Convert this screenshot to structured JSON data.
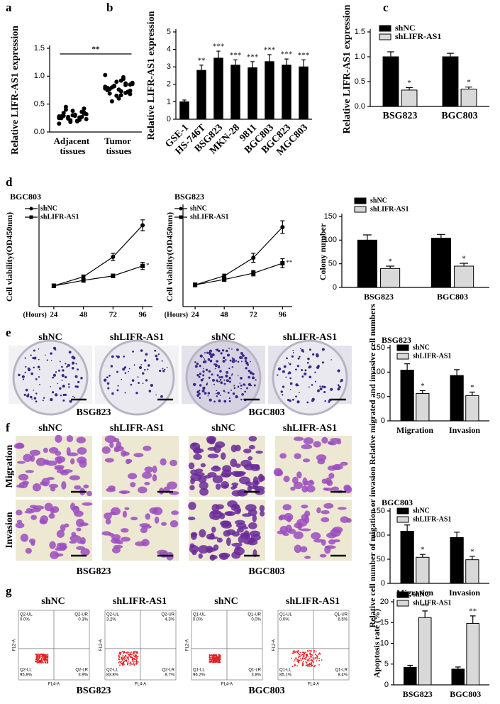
{
  "panel_labels": [
    "a",
    "b",
    "c",
    "d",
    "e",
    "f",
    "g"
  ],
  "chart_data": [
    {
      "type": "dot",
      "ylabel": "Relative LIFR-AS1 expression",
      "categories": [
        "Adjacent tissues",
        "Tumor tissues"
      ],
      "values": [
        [
          0.28,
          0.35,
          0.22,
          0.3,
          0.18,
          0.4,
          0.25,
          0.32,
          0.27,
          0.2,
          0.38,
          0.24,
          0.29,
          0.15,
          0.33,
          0.26,
          0.31,
          0.21,
          0.45,
          0.28,
          0.23,
          0.36,
          0.19,
          0.3,
          0.27,
          0.34,
          0.25,
          0.42,
          0.22,
          0.29
        ],
        [
          0.78,
          0.85,
          0.7,
          0.92,
          0.65,
          0.8,
          0.75,
          0.88,
          0.72,
          0.95,
          0.6,
          0.82,
          0.77,
          1.02,
          0.68,
          0.84,
          0.73,
          0.9,
          0.55,
          0.79,
          0.86,
          0.71,
          0.98,
          0.76,
          0.83,
          0.69,
          0.81,
          0.74,
          0.87,
          0.66
        ]
      ],
      "color": "#000000",
      "annotation": "**",
      "ylim": [
        0,
        1.5
      ],
      "yticks": [
        {
          "value": 0,
          "label": "0.0"
        },
        {
          "value": 0.5,
          "label": "0.5"
        },
        {
          "value": 1,
          "label": "1.0"
        },
        {
          "value": 1.5,
          "label": "1.5"
        }
      ]
    },
    {
      "type": "bar",
      "ylabel": "Relative LIFR-AS1 expression",
      "categories": [
        "GSE-1",
        "HS-746T",
        "BSG823",
        "MKN-28",
        "9811",
        "BGC803",
        "BGC823",
        "MGC803"
      ],
      "values": [
        1,
        2.8,
        3.5,
        3.1,
        2.95,
        3.3,
        3.1,
        3.0
      ],
      "errors": [
        0.1,
        0.3,
        0.4,
        0.3,
        0.35,
        0.4,
        0.35,
        0.4
      ],
      "annotations": [
        null,
        "**",
        "***",
        "***",
        "***",
        "***",
        "***",
        "***"
      ],
      "color": "#000000",
      "ylim": [
        0,
        5
      ],
      "yticks": [
        0,
        1,
        2,
        3,
        4,
        5
      ]
    },
    {
      "type": "bar",
      "ylabel": "Relative LIFR-AS1 expression",
      "categories": [
        "BSG823",
        "BGC803"
      ],
      "series": [
        {
          "name": "shNC",
          "color": "#000000",
          "values": [
            1,
            1
          ],
          "errors": [
            0.1,
            0.07
          ]
        },
        {
          "name": "shLIFR-AS1",
          "color": "#d9d9d9",
          "values": [
            0.33,
            0.35
          ],
          "errors": [
            0.05,
            0.04
          ],
          "annotations": [
            "*",
            "*"
          ]
        }
      ],
      "ylim": [
        0,
        1.5
      ],
      "yticks": [
        {
          "value": 0,
          "label": "0.0"
        },
        {
          "value": 0.5,
          "label": "0.5"
        },
        {
          "value": 1,
          "label": "1.0"
        },
        {
          "value": 1.5,
          "label": "1.5"
        }
      ]
    },
    {
      "type": "line",
      "title": "BGC803",
      "ylabel": "Cell viability(OD450nm)",
      "xlabel": "(Hours)",
      "x": [
        24,
        48,
        72,
        96
      ],
      "series": [
        {
          "name": "shNC",
          "color": "#000000",
          "values": [
            0.23,
            0.33,
            0.55,
            0.9
          ],
          "errors": [
            0.02,
            0.02,
            0.04,
            0.06
          ]
        },
        {
          "name": "shLIFR-AS1",
          "color": "#000000",
          "values": [
            0.23,
            0.29,
            0.34,
            0.45
          ],
          "errors": [
            0.02,
            0.02,
            0.02,
            0.04
          ],
          "annotation": "*"
        }
      ],
      "xlim": [
        12,
        104
      ],
      "xticks": [
        24,
        48,
        72,
        96
      ],
      "ylim": [
        0,
        1.1
      ]
    },
    {
      "type": "line",
      "title": "BSG823",
      "ylabel": "Cell viability(OD450nm)",
      "xlabel": "(Hours)",
      "x": [
        24,
        48,
        72,
        96
      ],
      "series": [
        {
          "name": "shNC",
          "color": "#000000",
          "values": [
            0.24,
            0.34,
            0.54,
            0.88
          ],
          "errors": [
            0.02,
            0.02,
            0.05,
            0.07
          ]
        },
        {
          "name": "shLIFR-AS1",
          "color": "#000000",
          "values": [
            0.24,
            0.3,
            0.37,
            0.48
          ],
          "errors": [
            0.02,
            0.02,
            0.03,
            0.05
          ],
          "annotation": "**"
        }
      ],
      "xlim": [
        14,
        104
      ],
      "xticks": [
        24,
        48,
        72,
        96
      ],
      "ylim": [
        0,
        1.1
      ]
    },
    {
      "type": "bar",
      "ylabel": "Colony number",
      "categories": [
        "BSG823",
        "BGC803"
      ],
      "series": [
        {
          "name": "shNC",
          "color": "#000000",
          "values": [
            100,
            104
          ],
          "errors": [
            11,
            8
          ]
        },
        {
          "name": "shLIFR-AS1",
          "color": "#d9d9d9",
          "values": [
            40,
            45
          ],
          "errors": [
            5,
            6
          ],
          "annotations": [
            "*",
            "*"
          ]
        }
      ],
      "ylim": [
        0,
        150
      ],
      "yticks": [
        0,
        50,
        100,
        150
      ]
    },
    {
      "type": "bar",
      "title": "BSG823",
      "ylabel": "Relative migrated and invasive cell numbers",
      "categories": [
        "Migration",
        "Invasion"
      ],
      "series": [
        {
          "name": "shNC",
          "color": "#000000",
          "values": [
            104,
            93
          ],
          "errors": [
            13,
            12
          ]
        },
        {
          "name": "shLIFR-AS1",
          "color": "#d9d9d9",
          "values": [
            56,
            52
          ],
          "errors": [
            6,
            7
          ],
          "annotations": [
            "*",
            "*"
          ]
        }
      ],
      "ylim": [
        0,
        150
      ],
      "yticks": [
        0,
        50,
        100,
        150
      ]
    },
    {
      "type": "bar",
      "title": "BGC803",
      "ylabel": "Relative cell number of migation or invasion",
      "categories": [
        "Migration",
        "Invasion"
      ],
      "series": [
        {
          "name": "shNC",
          "color": "#000000",
          "values": [
            108,
            95
          ],
          "errors": [
            13,
            11
          ]
        },
        {
          "name": "shLIFR-AS1",
          "color": "#d9d9d9",
          "values": [
            54,
            49
          ],
          "errors": [
            6,
            7
          ],
          "annotations": [
            "*",
            "*"
          ]
        }
      ],
      "ylim": [
        0,
        150
      ],
      "yticks": [
        0,
        50,
        100,
        150
      ]
    },
    {
      "type": "bar",
      "ylabel": "Apoptosis rate (%)",
      "categories": [
        "BSG823",
        "BGC803"
      ],
      "series": [
        {
          "name": "shNC",
          "color": "#000000",
          "values": [
            4.2,
            3.8
          ],
          "errors": [
            0.5,
            0.5
          ]
        },
        {
          "name": "shLIFR-AS1",
          "color": "#d9d9d9",
          "values": [
            16.2,
            14.8
          ],
          "errors": [
            1.6,
            1.8
          ],
          "annotations": [
            "**",
            "**"
          ]
        }
      ],
      "ylim": [
        0,
        20
      ],
      "yticks": [
        0,
        5,
        10,
        15,
        20
      ]
    }
  ],
  "colony_images": {
    "columns": [
      "shNC",
      "shLIFR-AS1",
      "shNC",
      "shLIFR-AS1"
    ],
    "groups": [
      "BSG823",
      "BGC803"
    ]
  },
  "transwell_images": {
    "columns": [
      "shNC",
      "shLIFR-AS1",
      "shNC",
      "shLIFR-AS1"
    ],
    "rows": [
      "Migration",
      "Invasion"
    ],
    "groups": [
      "BSG823",
      "BGC803"
    ]
  },
  "flow_plots": {
    "columns": [
      "shNC",
      "shLIFR-AS1",
      "shNC",
      "shLIFR-AS1"
    ],
    "groups": [
      "BSG823",
      "BGC803"
    ],
    "x_axis": "FL4-A",
    "y_axis": "FL2-A",
    "plots": [
      [
        {
          "name": "Q2-UL",
          "value": "0.0%"
        },
        {
          "name": "Q2-UR",
          "value": "0.3%"
        },
        {
          "name": "Q2-LL",
          "value": "95.8%"
        },
        {
          "name": "Q2-LR",
          "value": "3.9%"
        }
      ],
      [
        {
          "name": "Q2-UL",
          "value": "3.2%"
        },
        {
          "name": "Q2-UR",
          "value": "4.3%"
        },
        {
          "name": "Q2-LL",
          "value": "83.8%"
        },
        {
          "name": "Q2-LR",
          "value": "8.7%"
        }
      ],
      [
        {
          "name": "Q1-UL",
          "value": "0.0%"
        },
        {
          "name": "Q1-UR",
          "value": "0.0%"
        },
        {
          "name": "Q1-LL",
          "value": "96.2%"
        },
        {
          "name": "Q1-LR",
          "value": "3.8%"
        }
      ],
      [
        {
          "name": "Q1-UL",
          "value": "0.0%"
        },
        {
          "name": "Q1-UR",
          "value": "6.5%"
        },
        {
          "name": "Q1-LL",
          "value": "85.1%"
        },
        {
          "name": "Q1-LR",
          "value": "8.4%"
        }
      ]
    ]
  }
}
